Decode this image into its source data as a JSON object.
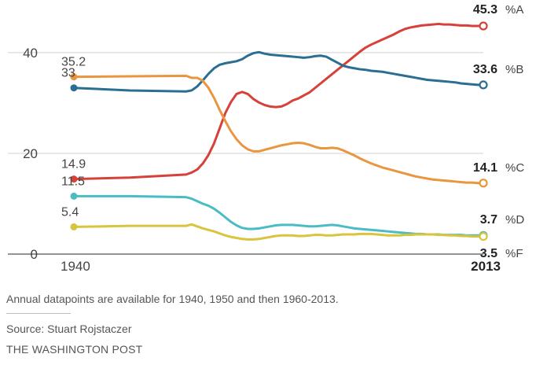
{
  "chart_data": {
    "type": "line",
    "title": "",
    "xlabel": "",
    "ylabel": "",
    "xlim": [
      1940,
      2013
    ],
    "ylim": [
      0,
      45.3
    ],
    "yticks": [
      0,
      20,
      40
    ],
    "grid": "horizontal",
    "x_tick_labels": {
      "start": "1940",
      "end": "2013"
    },
    "series": [
      {
        "name": "A",
        "label": "%A",
        "color": "#d6413a",
        "start_label": "14.9",
        "end_label": "45.3",
        "points": [
          [
            1940,
            14.9
          ],
          [
            1950,
            15.2
          ],
          [
            1960,
            15.8
          ],
          [
            1961,
            16.2
          ],
          [
            1962,
            16.8
          ],
          [
            1963,
            18.0
          ],
          [
            1964,
            19.7
          ],
          [
            1965,
            22.0
          ],
          [
            1966,
            25.0
          ],
          [
            1967,
            28.0
          ],
          [
            1968,
            30.2
          ],
          [
            1969,
            31.8
          ],
          [
            1970,
            32.2
          ],
          [
            1971,
            31.8
          ],
          [
            1972,
            30.8
          ],
          [
            1973,
            30.1
          ],
          [
            1974,
            29.6
          ],
          [
            1975,
            29.3
          ],
          [
            1976,
            29.2
          ],
          [
            1977,
            29.3
          ],
          [
            1978,
            29.8
          ],
          [
            1979,
            30.5
          ],
          [
            1980,
            30.9
          ],
          [
            1981,
            31.5
          ],
          [
            1982,
            32.1
          ],
          [
            1983,
            33.0
          ],
          [
            1984,
            33.9
          ],
          [
            1985,
            34.8
          ],
          [
            1986,
            35.7
          ],
          [
            1987,
            36.6
          ],
          [
            1988,
            37.5
          ],
          [
            1989,
            38.4
          ],
          [
            1990,
            39.3
          ],
          [
            1991,
            40.2
          ],
          [
            1992,
            41.0
          ],
          [
            1993,
            41.6
          ],
          [
            1994,
            42.1
          ],
          [
            1995,
            42.6
          ],
          [
            1996,
            43.1
          ],
          [
            1997,
            43.6
          ],
          [
            1998,
            44.2
          ],
          [
            1999,
            44.7
          ],
          [
            2000,
            45.0
          ],
          [
            2001,
            45.2
          ],
          [
            2002,
            45.4
          ],
          [
            2003,
            45.5
          ],
          [
            2004,
            45.6
          ],
          [
            2005,
            45.7
          ],
          [
            2006,
            45.6
          ],
          [
            2007,
            45.6
          ],
          [
            2008,
            45.5
          ],
          [
            2009,
            45.4
          ],
          [
            2010,
            45.4
          ],
          [
            2011,
            45.3
          ],
          [
            2012,
            45.3
          ],
          [
            2013,
            45.3
          ]
        ]
      },
      {
        "name": "B",
        "label": "%B",
        "color": "#2a6f92",
        "start_label": "33",
        "end_label": "33.6",
        "points": [
          [
            1940,
            33.0
          ],
          [
            1950,
            32.5
          ],
          [
            1960,
            32.3
          ],
          [
            1961,
            32.5
          ],
          [
            1962,
            33.3
          ],
          [
            1963,
            34.5
          ],
          [
            1964,
            35.8
          ],
          [
            1965,
            36.9
          ],
          [
            1966,
            37.6
          ],
          [
            1967,
            37.9
          ],
          [
            1968,
            38.1
          ],
          [
            1969,
            38.3
          ],
          [
            1970,
            38.7
          ],
          [
            1971,
            39.4
          ],
          [
            1972,
            39.9
          ],
          [
            1973,
            40.1
          ],
          [
            1974,
            39.8
          ],
          [
            1975,
            39.6
          ],
          [
            1976,
            39.5
          ],
          [
            1977,
            39.4
          ],
          [
            1978,
            39.3
          ],
          [
            1979,
            39.2
          ],
          [
            1980,
            39.1
          ],
          [
            1981,
            39.0
          ],
          [
            1982,
            39.1
          ],
          [
            1983,
            39.3
          ],
          [
            1984,
            39.4
          ],
          [
            1985,
            39.2
          ],
          [
            1986,
            38.6
          ],
          [
            1987,
            38.0
          ],
          [
            1988,
            37.4
          ],
          [
            1989,
            37.1
          ],
          [
            1990,
            36.9
          ],
          [
            1991,
            36.7
          ],
          [
            1992,
            36.6
          ],
          [
            1993,
            36.4
          ],
          [
            1994,
            36.3
          ],
          [
            1995,
            36.2
          ],
          [
            1996,
            36.0
          ],
          [
            1997,
            35.8
          ],
          [
            1998,
            35.6
          ],
          [
            1999,
            35.4
          ],
          [
            2000,
            35.2
          ],
          [
            2001,
            35.0
          ],
          [
            2002,
            34.8
          ],
          [
            2003,
            34.6
          ],
          [
            2004,
            34.5
          ],
          [
            2005,
            34.4
          ],
          [
            2006,
            34.3
          ],
          [
            2007,
            34.2
          ],
          [
            2008,
            34.1
          ],
          [
            2009,
            33.9
          ],
          [
            2010,
            33.8
          ],
          [
            2011,
            33.7
          ],
          [
            2012,
            33.6
          ],
          [
            2013,
            33.6
          ]
        ]
      },
      {
        "name": "C",
        "label": "%C",
        "color": "#ea9641",
        "start_label": "35.2",
        "end_label": "14.1",
        "points": [
          [
            1940,
            35.2
          ],
          [
            1950,
            35.3
          ],
          [
            1960,
            35.4
          ],
          [
            1961,
            35.0
          ],
          [
            1962,
            35.0
          ],
          [
            1963,
            34.4
          ],
          [
            1964,
            33.0
          ],
          [
            1965,
            31.0
          ],
          [
            1966,
            28.6
          ],
          [
            1967,
            26.4
          ],
          [
            1968,
            24.4
          ],
          [
            1969,
            22.8
          ],
          [
            1970,
            21.6
          ],
          [
            1971,
            20.8
          ],
          [
            1972,
            20.4
          ],
          [
            1973,
            20.4
          ],
          [
            1974,
            20.7
          ],
          [
            1975,
            21.0
          ],
          [
            1976,
            21.3
          ],
          [
            1977,
            21.6
          ],
          [
            1978,
            21.8
          ],
          [
            1979,
            22.0
          ],
          [
            1980,
            22.1
          ],
          [
            1981,
            22.0
          ],
          [
            1982,
            21.7
          ],
          [
            1983,
            21.3
          ],
          [
            1984,
            21.0
          ],
          [
            1985,
            21.0
          ],
          [
            1986,
            21.1
          ],
          [
            1987,
            21.0
          ],
          [
            1988,
            20.6
          ],
          [
            1989,
            20.1
          ],
          [
            1990,
            19.6
          ],
          [
            1991,
            19.0
          ],
          [
            1992,
            18.5
          ],
          [
            1993,
            18.0
          ],
          [
            1994,
            17.6
          ],
          [
            1995,
            17.2
          ],
          [
            1996,
            16.9
          ],
          [
            1997,
            16.6
          ],
          [
            1998,
            16.3
          ],
          [
            1999,
            16.0
          ],
          [
            2000,
            15.7
          ],
          [
            2001,
            15.4
          ],
          [
            2002,
            15.2
          ],
          [
            2003,
            15.0
          ],
          [
            2004,
            14.8
          ],
          [
            2005,
            14.7
          ],
          [
            2006,
            14.6
          ],
          [
            2007,
            14.5
          ],
          [
            2008,
            14.4
          ],
          [
            2009,
            14.3
          ],
          [
            2010,
            14.2
          ],
          [
            2011,
            14.2
          ],
          [
            2012,
            14.1
          ],
          [
            2013,
            14.1
          ]
        ]
      },
      {
        "name": "D",
        "label": "%D",
        "color": "#4bbcc4",
        "start_label": "11.5",
        "end_label": "3.7",
        "points": [
          [
            1940,
            11.5
          ],
          [
            1950,
            11.5
          ],
          [
            1960,
            11.3
          ],
          [
            1961,
            11.0
          ],
          [
            1962,
            10.5
          ],
          [
            1963,
            10.0
          ],
          [
            1964,
            9.6
          ],
          [
            1965,
            9.0
          ],
          [
            1966,
            8.2
          ],
          [
            1967,
            7.3
          ],
          [
            1968,
            6.4
          ],
          [
            1969,
            5.7
          ],
          [
            1970,
            5.2
          ],
          [
            1971,
            5.0
          ],
          [
            1972,
            5.0
          ],
          [
            1973,
            5.1
          ],
          [
            1974,
            5.3
          ],
          [
            1975,
            5.5
          ],
          [
            1976,
            5.7
          ],
          [
            1977,
            5.8
          ],
          [
            1978,
            5.8
          ],
          [
            1979,
            5.8
          ],
          [
            1980,
            5.7
          ],
          [
            1981,
            5.6
          ],
          [
            1982,
            5.5
          ],
          [
            1983,
            5.5
          ],
          [
            1984,
            5.6
          ],
          [
            1985,
            5.7
          ],
          [
            1986,
            5.8
          ],
          [
            1987,
            5.7
          ],
          [
            1988,
            5.5
          ],
          [
            1989,
            5.3
          ],
          [
            1990,
            5.1
          ],
          [
            1991,
            5.0
          ],
          [
            1992,
            4.9
          ],
          [
            1993,
            4.8
          ],
          [
            1994,
            4.7
          ],
          [
            1995,
            4.6
          ],
          [
            1996,
            4.5
          ],
          [
            1997,
            4.4
          ],
          [
            1998,
            4.3
          ],
          [
            1999,
            4.2
          ],
          [
            2000,
            4.1
          ],
          [
            2001,
            4.0
          ],
          [
            2002,
            4.0
          ],
          [
            2003,
            3.9
          ],
          [
            2004,
            3.9
          ],
          [
            2005,
            3.9
          ],
          [
            2006,
            3.8
          ],
          [
            2007,
            3.8
          ],
          [
            2008,
            3.8
          ],
          [
            2009,
            3.8
          ],
          [
            2010,
            3.7
          ],
          [
            2011,
            3.7
          ],
          [
            2012,
            3.7
          ],
          [
            2013,
            3.7
          ]
        ]
      },
      {
        "name": "F",
        "label": "%F",
        "color": "#d8c43d",
        "start_label": "5.4",
        "end_label": "3.5",
        "points": [
          [
            1940,
            5.4
          ],
          [
            1950,
            5.6
          ],
          [
            1960,
            5.6
          ],
          [
            1961,
            5.9
          ],
          [
            1962,
            5.5
          ],
          [
            1963,
            5.1
          ],
          [
            1964,
            4.8
          ],
          [
            1965,
            4.5
          ],
          [
            1966,
            4.1
          ],
          [
            1967,
            3.7
          ],
          [
            1968,
            3.4
          ],
          [
            1969,
            3.2
          ],
          [
            1970,
            3.0
          ],
          [
            1971,
            2.9
          ],
          [
            1972,
            2.9
          ],
          [
            1973,
            3.0
          ],
          [
            1974,
            3.2
          ],
          [
            1975,
            3.4
          ],
          [
            1976,
            3.6
          ],
          [
            1977,
            3.7
          ],
          [
            1978,
            3.7
          ],
          [
            1979,
            3.7
          ],
          [
            1980,
            3.6
          ],
          [
            1981,
            3.6
          ],
          [
            1982,
            3.7
          ],
          [
            1983,
            3.8
          ],
          [
            1984,
            3.8
          ],
          [
            1985,
            3.7
          ],
          [
            1986,
            3.7
          ],
          [
            1987,
            3.8
          ],
          [
            1988,
            3.9
          ],
          [
            1989,
            3.9
          ],
          [
            1990,
            3.9
          ],
          [
            1991,
            4.0
          ],
          [
            1992,
            4.0
          ],
          [
            1993,
            4.0
          ],
          [
            1994,
            3.9
          ],
          [
            1995,
            3.8
          ],
          [
            1996,
            3.7
          ],
          [
            1997,
            3.7
          ],
          [
            1998,
            3.7
          ],
          [
            1999,
            3.8
          ],
          [
            2000,
            3.8
          ],
          [
            2001,
            3.9
          ],
          [
            2002,
            3.9
          ],
          [
            2003,
            3.9
          ],
          [
            2004,
            3.9
          ],
          [
            2005,
            3.8
          ],
          [
            2006,
            3.8
          ],
          [
            2007,
            3.7
          ],
          [
            2008,
            3.7
          ],
          [
            2009,
            3.6
          ],
          [
            2010,
            3.6
          ],
          [
            2011,
            3.5
          ],
          [
            2012,
            3.5
          ],
          [
            2013,
            3.5
          ]
        ]
      }
    ]
  },
  "footer": {
    "note": "Annual datapoints are available for 1940, 1950 and then 1960-2013.",
    "source": "Source: Stuart Rojstaczer",
    "brand": "THE WASHINGTON POST"
  }
}
